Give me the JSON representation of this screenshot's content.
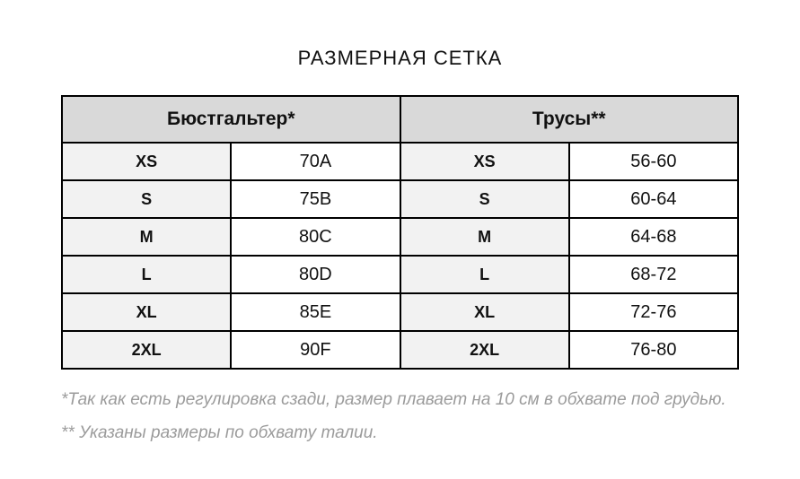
{
  "chart_data": {
    "type": "table",
    "title": "РАЗМЕРНАЯ СЕТКА",
    "sections": [
      {
        "header": "Бюстгальтер*",
        "rows": [
          [
            "XS",
            "70A"
          ],
          [
            "S",
            "75B"
          ],
          [
            "M",
            "80C"
          ],
          [
            "L",
            "80D"
          ],
          [
            "XL",
            "85E"
          ],
          [
            "2XL",
            "90F"
          ]
        ]
      },
      {
        "header": "Трусы**",
        "rows": [
          [
            "XS",
            "56-60"
          ],
          [
            "S",
            "60-64"
          ],
          [
            "M",
            "64-68"
          ],
          [
            "L",
            "68-72"
          ],
          [
            "XL",
            "72-76"
          ],
          [
            "2XL",
            "76-80"
          ]
        ]
      }
    ],
    "footnotes": [
      "*Так как есть регулировка сзади, размер плавает на 10 см в обхвате под грудью.",
      "** Указаны размеры по обхвату талии."
    ],
    "layout_hints": {
      "grid": "on",
      "header_row": "spans two columns per section",
      "columns_per_section": 2
    }
  },
  "colors": {
    "header_bg": "#d9d9d9",
    "size_cell_bg": "#f2f2f2",
    "value_cell_bg": "#ffffff",
    "border": "#000000",
    "title_text": "#111111",
    "footnote_text": "#9b9b9b"
  }
}
